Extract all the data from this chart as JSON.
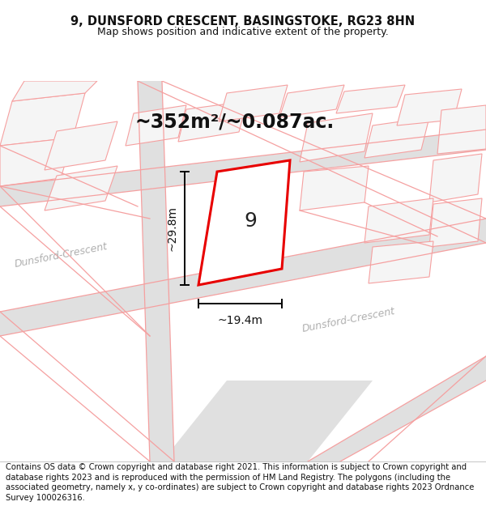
{
  "title_line1": "9, DUNSFORD CRESCENT, BASINGSTOKE, RG23 8HN",
  "title_line2": "Map shows position and indicative extent of the property.",
  "area_text": "~352m²/~0.087ac.",
  "property_number": "9",
  "dim_vertical": "~29.8m",
  "dim_horizontal": "~19.4m",
  "street_label_left": "Dunsford-Crescent",
  "street_label_right": "Dunsford-Crescent",
  "copyright_text": "Contains OS data © Crown copyright and database right 2021. This information is subject to Crown copyright and database rights 2023 and is reproduced with the permission of HM Land Registry. The polygons (including the associated geometry, namely x, y co-ordinates) are subject to Crown copyright and database rights 2023 Ordnance Survey 100026316.",
  "background_color": "#ffffff",
  "road_fill_color": "#e0e0e0",
  "property_outline_color": "#ff0000",
  "property_fill_color": "#ffffff",
  "pink_line_color": "#f5a0a0",
  "pink_fill_color": "#f5f5f5",
  "dim_line_color": "#000000",
  "title_fontsize": 10.5,
  "subtitle_fontsize": 9,
  "area_fontsize": 17,
  "prop_num_fontsize": 18,
  "dim_fontsize": 10,
  "street_fontsize": 9,
  "copyright_fontsize": 7.2
}
